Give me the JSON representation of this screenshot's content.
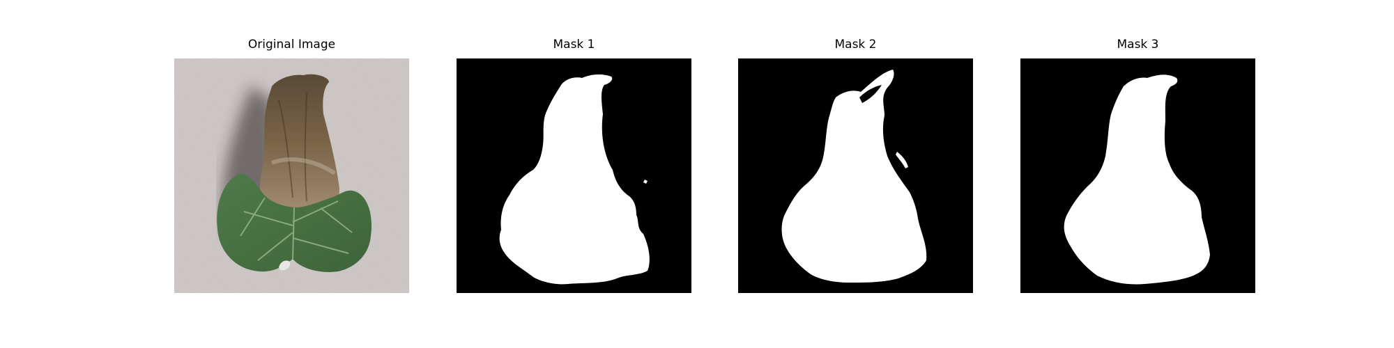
{
  "panels": [
    {
      "title": "Original Image"
    },
    {
      "title": "Mask 1"
    },
    {
      "title": "Mask 2"
    },
    {
      "title": "Mask 3"
    }
  ]
}
